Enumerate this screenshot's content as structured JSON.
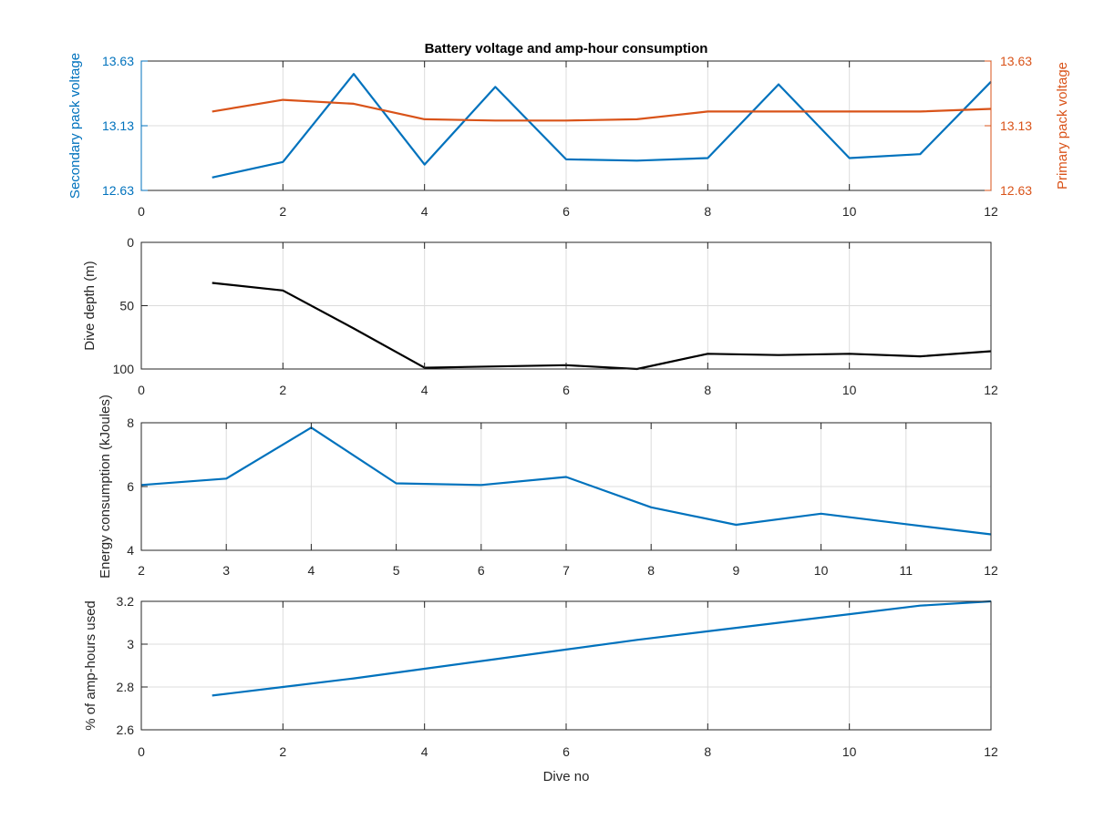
{
  "figure": {
    "title": "Battery voltage and amp-hour consumption",
    "xlabel": "Dive no"
  },
  "colors": {
    "blue": "#0072BD",
    "orange": "#D95319",
    "black": "#000000",
    "grid": "#dcdcdc",
    "axis": "#262626"
  },
  "chart_data": [
    {
      "type": "line",
      "dual_axis": true,
      "title": "Battery voltage and amp-hour consumption",
      "xlim": [
        0,
        12
      ],
      "xticks": [
        0,
        2,
        4,
        6,
        8,
        10,
        12
      ],
      "ylabel": "Secondary pack voltage",
      "y2label": "Primary pack voltage",
      "ylim": [
        12.63,
        13.63
      ],
      "y2lim": [
        12.63,
        13.63
      ],
      "yticks": [
        "12.63",
        "13.13",
        "13.63"
      ],
      "y2ticks": [
        "12.63",
        "13.13",
        "13.63"
      ],
      "grid": true,
      "series": [
        {
          "axis": "left",
          "x": [
            1,
            2,
            3,
            4,
            5,
            6,
            7,
            8,
            9,
            10,
            11,
            12
          ],
          "y": [
            12.73,
            12.85,
            13.53,
            12.83,
            13.43,
            12.87,
            12.86,
            12.88,
            13.45,
            12.88,
            12.91,
            13.47
          ]
        },
        {
          "axis": "right",
          "x": [
            1,
            2,
            3,
            4,
            5,
            6,
            7,
            8,
            9,
            10,
            11,
            12
          ],
          "y": [
            13.24,
            13.33,
            13.3,
            13.18,
            13.17,
            13.17,
            13.18,
            13.24,
            13.24,
            13.24,
            13.24,
            13.26
          ]
        }
      ]
    },
    {
      "type": "line",
      "xlim": [
        0,
        12
      ],
      "xticks": [
        0,
        2,
        4,
        6,
        8,
        10,
        12
      ],
      "ylabel": "Dive depth (m)",
      "ylim": [
        0,
        100
      ],
      "y_reversed": true,
      "yticks": [
        0,
        50,
        100
      ],
      "grid": true,
      "series": [
        {
          "x": [
            1,
            2,
            3,
            4,
            5,
            6,
            7,
            8,
            9,
            10,
            11,
            12
          ],
          "y": [
            32,
            38,
            68,
            99,
            98,
            97,
            100,
            88,
            89,
            88,
            90,
            86
          ]
        }
      ]
    },
    {
      "type": "line",
      "xlim": [
        2,
        12
      ],
      "xticks": [
        2,
        3,
        4,
        5,
        6,
        7,
        8,
        9,
        10,
        11,
        12
      ],
      "ylabel": "Energy consumption (kJoules)",
      "ylim": [
        4,
        8
      ],
      "yticks": [
        4,
        6,
        8
      ],
      "grid": true,
      "series": [
        {
          "x": [
            2,
            3,
            4,
            5,
            6,
            7,
            8,
            9,
            10,
            11,
            12
          ],
          "y": [
            6.05,
            6.25,
            7.85,
            6.1,
            6.05,
            6.3,
            5.35,
            4.8,
            5.15,
            4.82,
            4.5
          ]
        }
      ]
    },
    {
      "type": "line",
      "xlim": [
        0,
        12
      ],
      "xticks": [
        0,
        2,
        4,
        6,
        8,
        10,
        12
      ],
      "xlabel": "Dive no",
      "ylabel": "% of amp-hours used",
      "ylim": [
        2.6,
        3.2
      ],
      "yticks": [
        "2.6",
        "2.8",
        "3",
        "3.2"
      ],
      "grid": true,
      "series": [
        {
          "x": [
            1,
            2,
            3,
            4,
            5,
            6,
            7,
            8,
            9,
            10,
            11,
            12
          ],
          "y": [
            2.76,
            2.8,
            2.84,
            2.885,
            2.93,
            2.975,
            3.02,
            3.06,
            3.1,
            3.14,
            3.18,
            3.22
          ]
        }
      ]
    }
  ]
}
